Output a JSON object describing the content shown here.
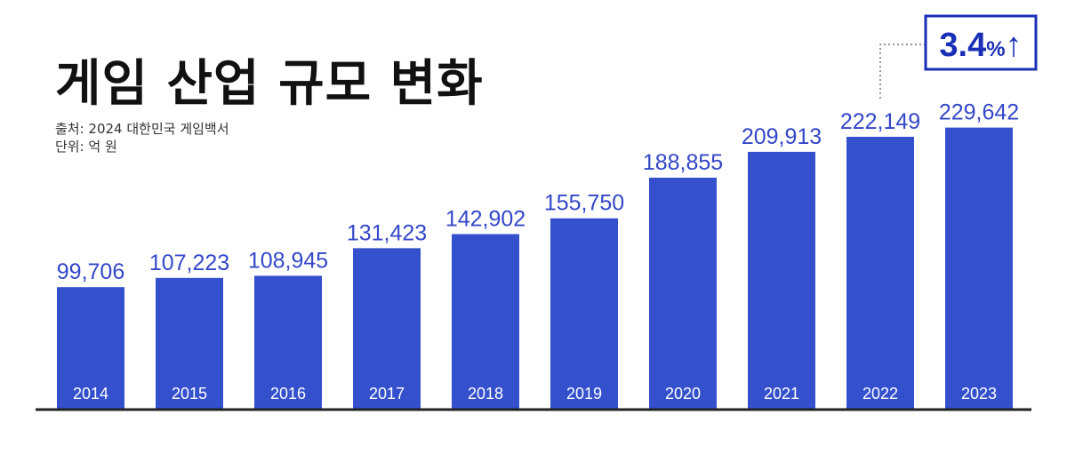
{
  "title": "게임 산업 규모 변화",
  "source": "출처: 2024 대한민국 게임백서",
  "unit": "단위: 억 원",
  "colors": {
    "bar": "#3450cc",
    "value_label": "#3347c8",
    "accent": "#1a2fb5",
    "baseline": "#222222"
  },
  "growth_callout": {
    "value": "3.4",
    "percent_sign": "%",
    "arrow": "↑"
  },
  "chart_data": {
    "type": "bar",
    "title": "게임 산업 규모 변화",
    "categories": [
      "2014",
      "2015",
      "2016",
      "2017",
      "2018",
      "2019",
      "2020",
      "2021",
      "2022",
      "2023"
    ],
    "values": [
      99706,
      107223,
      108945,
      131423,
      142902,
      155750,
      188855,
      209913,
      222149,
      229642
    ],
    "value_labels": [
      "99,706",
      "107,223",
      "108,945",
      "131,423",
      "142,902",
      "155,750",
      "188,855",
      "209,913",
      "222,149",
      "229,642"
    ],
    "ylim": [
      0,
      246000
    ],
    "grid": false,
    "legend": "none"
  }
}
